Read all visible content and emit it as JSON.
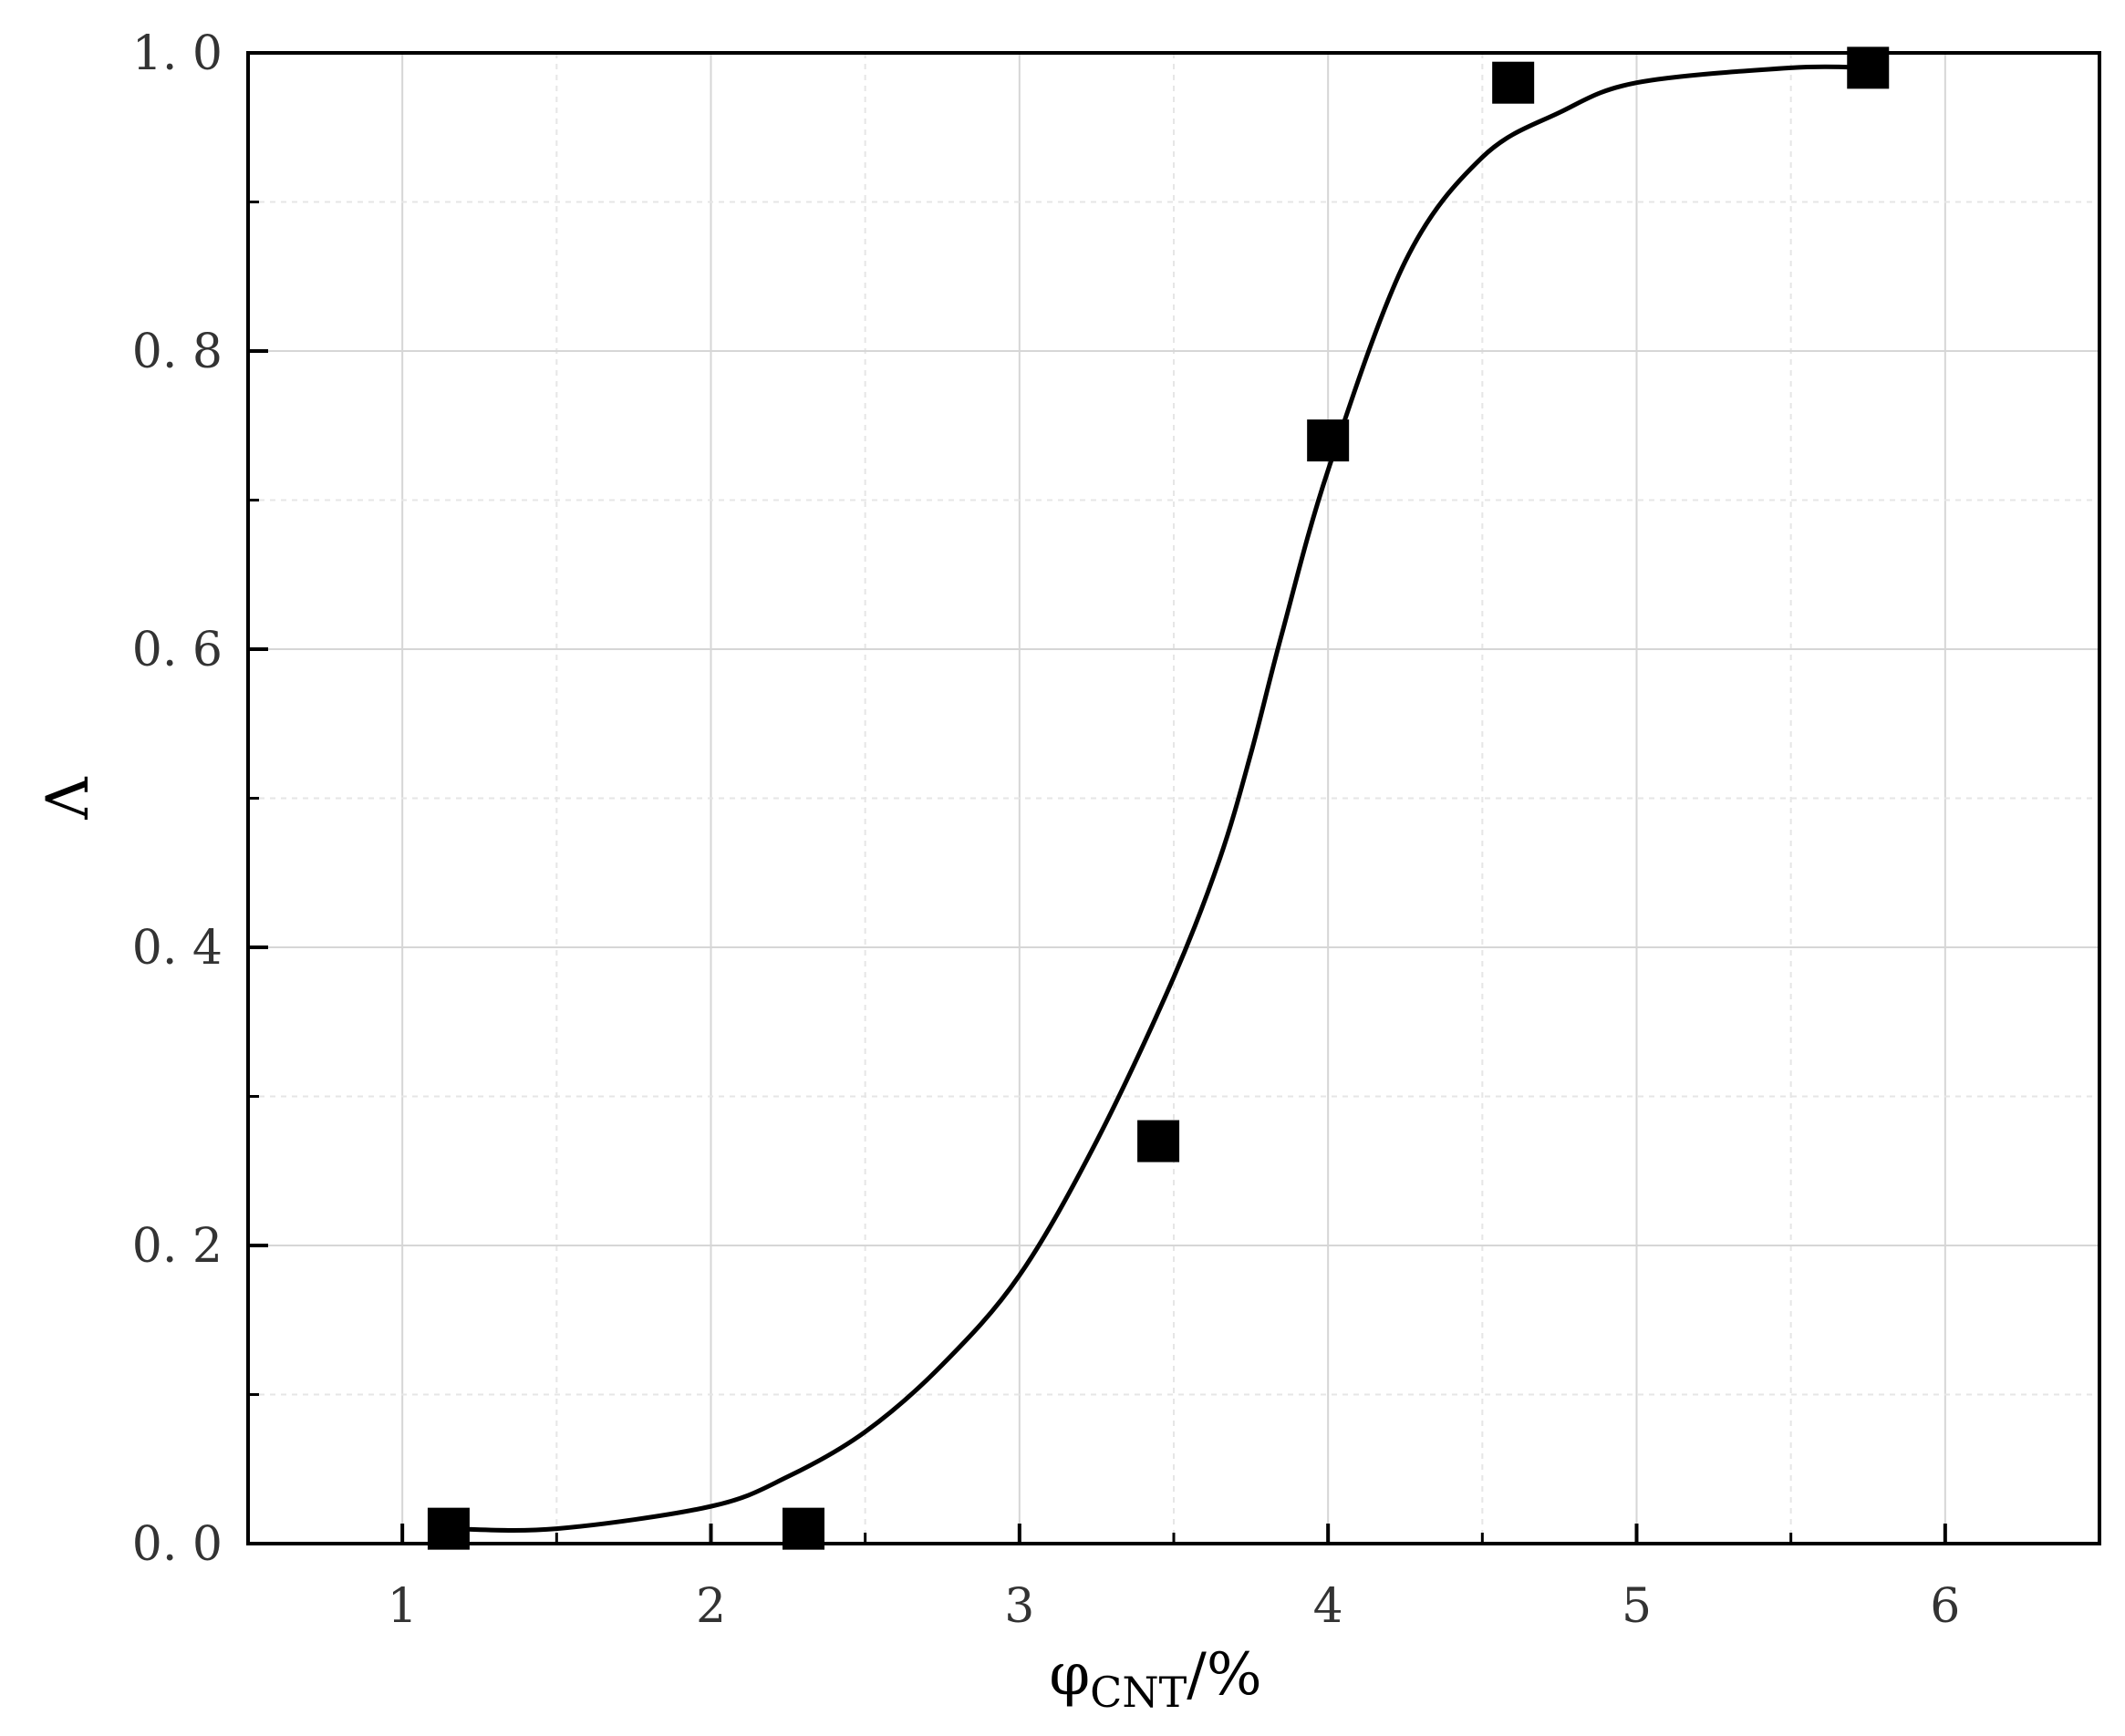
{
  "chart_data": {
    "type": "scatter",
    "title": "",
    "xlabel": {
      "main": "φ",
      "sub": "CNT",
      "suffix": "/%"
    },
    "ylabel": "Λ",
    "xlim": [
      0.5,
      6.5
    ],
    "ylim": [
      0.0,
      1.0
    ],
    "x_ticks": [
      1,
      2,
      3,
      4,
      5,
      6
    ],
    "x_tick_labels": [
      "1",
      "2",
      "3",
      "4",
      "5",
      "6"
    ],
    "y_ticks": [
      0.0,
      0.2,
      0.4,
      0.6,
      0.8,
      1.0
    ],
    "y_tick_labels": [
      "0. 0",
      "0. 2",
      "0. 4",
      "0. 6",
      "0. 8",
      "1. 0"
    ],
    "grid": true,
    "marker": "square",
    "marker_color": "#000000",
    "line_color": "#000000",
    "series": [
      {
        "kind": "points",
        "x": [
          1.15,
          2.3,
          3.45,
          4.0,
          4.6,
          5.75
        ],
        "y": [
          0.01,
          0.01,
          0.27,
          0.74,
          0.98,
          0.99
        ]
      },
      {
        "kind": "fit-curve",
        "x": [
          1.15,
          1.5,
          2.0,
          2.25,
          2.5,
          2.75,
          3.0,
          3.25,
          3.5,
          3.65,
          3.75,
          3.85,
          4.0,
          4.25,
          4.5,
          4.75,
          5.0,
          5.5,
          5.75
        ],
        "y": [
          0.01,
          0.01,
          0.025,
          0.045,
          0.075,
          0.12,
          0.18,
          0.27,
          0.38,
          0.46,
          0.53,
          0.61,
          0.72,
          0.86,
          0.93,
          0.96,
          0.98,
          0.99,
          0.99
        ]
      }
    ]
  }
}
